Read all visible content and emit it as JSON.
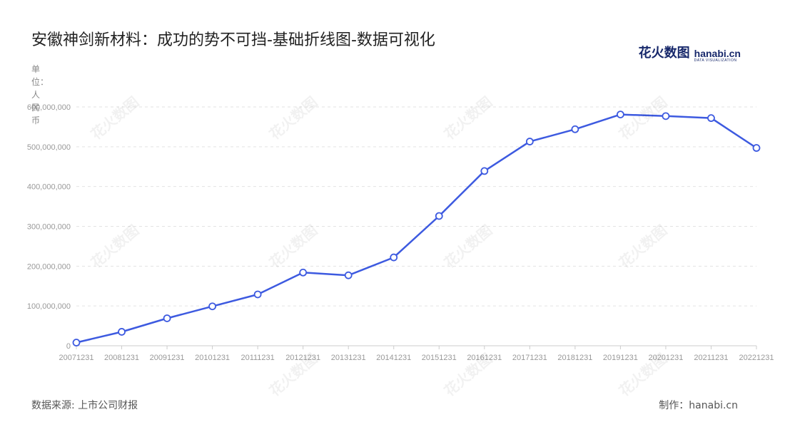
{
  "title": "安徽神剑新材料：成功的势不可挡-基础折线图-数据可视化",
  "logo": {
    "cn": "花火数图",
    "en": "hanabi.cn",
    "sub": "DATA VISUALIZATION"
  },
  "unit_label": "单位：人民币",
  "footer": {
    "source": "数据来源: 上市公司财报",
    "credit": "制作：hanabi.cn"
  },
  "colors": {
    "line": "#3d5ae0",
    "grid": "#e3e3e3",
    "axis": "#cccccc",
    "tick": "#999999"
  },
  "chart_data": {
    "type": "line",
    "title": "安徽神剑新材料：成功的势不可挡-基础折线图-数据可视化",
    "ylabel": "单位：人民币",
    "xlabel": "",
    "categories": [
      "20071231",
      "20081231",
      "20091231",
      "20101231",
      "20111231",
      "20121231",
      "20131231",
      "20141231",
      "20151231",
      "20161231",
      "20171231",
      "20181231",
      "20191231",
      "20201231",
      "20211231",
      "20221231"
    ],
    "yticks": [
      0,
      100000000,
      200000000,
      300000000,
      400000000,
      500000000,
      600000000
    ],
    "ytick_labels": [
      "0",
      "100,000,000",
      "200,000,000",
      "300,000,000",
      "400,000,000",
      "500,000,000",
      "600,000,000"
    ],
    "ylim": [
      0,
      600000000
    ],
    "grid": true,
    "series": [
      {
        "values": [
          8000000,
          35000000,
          69000000,
          99000000,
          129000000,
          184000000,
          177000000,
          222000000,
          326000000,
          439000000,
          513000000,
          544000000,
          581000000,
          577000000,
          572000000,
          497000000
        ]
      }
    ]
  }
}
